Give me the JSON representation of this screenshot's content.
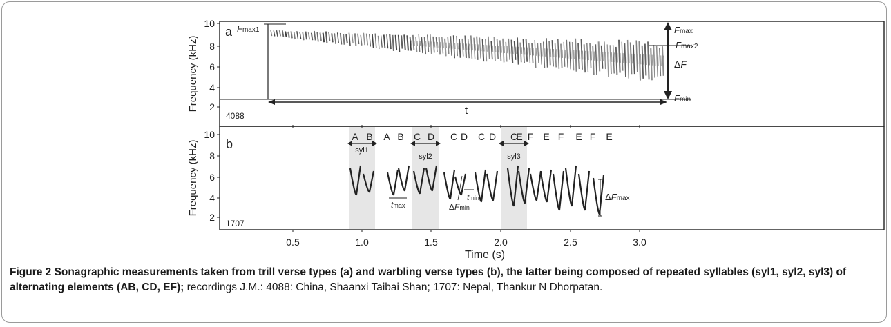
{
  "panel_a": {
    "letter": "a",
    "recording_id": "4088",
    "ylabel": "Frequency (kHz)",
    "yticks": [
      "2",
      "4",
      "6",
      "8",
      "10"
    ],
    "fmax1_main": "F",
    "fmax1_sub": "max1",
    "fmax_main": "F",
    "fmax_sub": "max",
    "fmax2_main": "F",
    "fmax2_sub": "max2",
    "delta_f_sym": "Δ",
    "delta_f_main": "F",
    "fmin_main": "F",
    "fmin_sub": "min",
    "duration_label": "t"
  },
  "panel_b": {
    "letter": "b",
    "recording_id": "1707",
    "ylabel": "Frequency (kHz)",
    "yticks": [
      "2",
      "4",
      "6",
      "8",
      "10"
    ],
    "element_labels": [
      "A",
      "B",
      "A",
      "B",
      "C",
      "D",
      "C",
      "D",
      "C",
      "D",
      "C",
      "E",
      "F",
      "E",
      "F",
      "E",
      "F",
      "E"
    ],
    "syllables": [
      "syl1",
      "syl2",
      "syl3"
    ],
    "tmax_main": "t",
    "tmax_sub": "max",
    "tmin_main": "t",
    "tmin_sub": "min",
    "dfmin_sym": "Δ",
    "dfmin_main": "F",
    "dfmin_sub": "min",
    "dfmax_sym": "Δ",
    "dfmax_main": "F",
    "dfmax_sub": "max"
  },
  "x_axis": {
    "label": "Time (s)",
    "ticks": [
      "0.5",
      "1.0",
      "1.5",
      "2.0",
      "2.5",
      "3.0"
    ]
  },
  "caption": {
    "bold": "Figure 2 Sonagraphic measurements taken from trill verse types (a) and warbling verse types (b), the latter being composed of repeated syllables (syl1, syl2, syl3) of alternating elements (AB, CD, EF);",
    "rest": " recordings J.M.: 4088: China, Shaanxi Taibai Shan; 1707: Nepal, Thankur N Dhorpatan."
  }
}
